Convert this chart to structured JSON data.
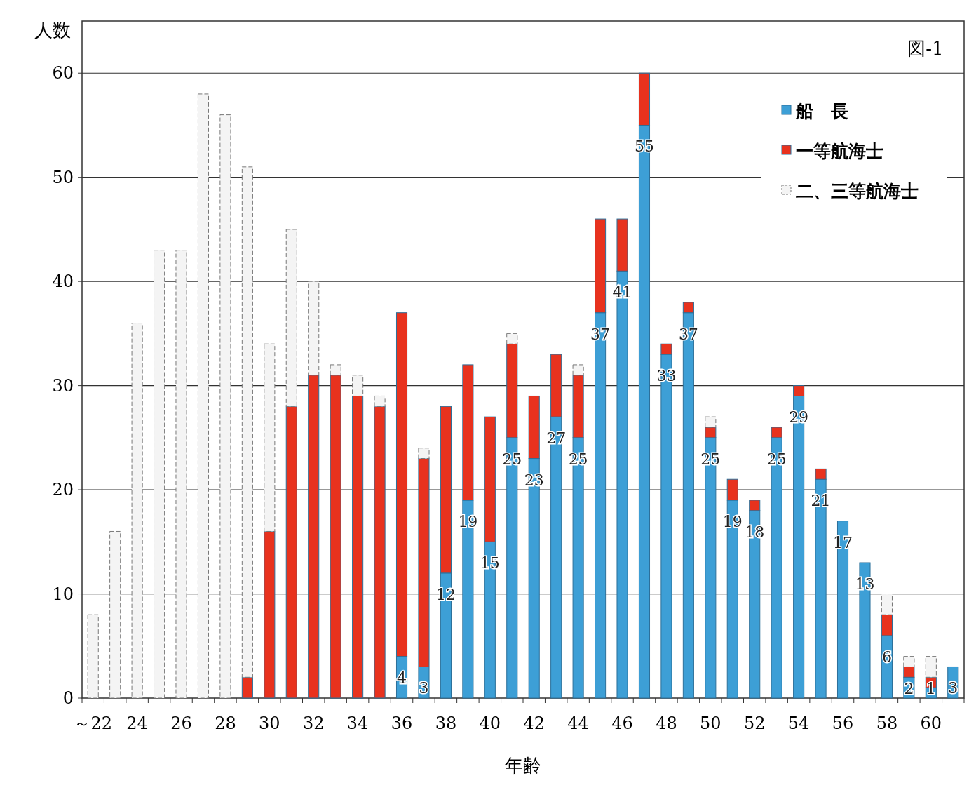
{
  "chart_data": {
    "type": "bar",
    "stacked": true,
    "xlabel": "年齢",
    "ylabel": "人数",
    "annotations": [
      "図-1"
    ],
    "categories": [
      "～22",
      null,
      "24",
      null,
      "26",
      null,
      "28",
      null,
      "30",
      null,
      "32",
      null,
      "34",
      null,
      "36",
      null,
      "38",
      null,
      "40",
      null,
      "42",
      null,
      "44",
      null,
      "46",
      null,
      "48",
      null,
      "50",
      null,
      "52",
      null,
      "54",
      null,
      "56",
      null,
      "58",
      null,
      "60",
      null
    ],
    "series": [
      {
        "name": "船　長",
        "color": "#3d9fd6",
        "values": [
          null,
          null,
          null,
          null,
          null,
          null,
          null,
          null,
          null,
          null,
          null,
          null,
          null,
          null,
          4,
          3,
          12,
          19,
          15,
          25,
          23,
          27,
          25,
          37,
          41,
          55,
          33,
          37,
          25,
          19,
          18,
          25,
          29,
          21,
          17,
          13,
          6,
          2,
          1,
          3
        ],
        "value_labels": [
          null,
          null,
          null,
          null,
          null,
          null,
          null,
          null,
          null,
          null,
          null,
          null,
          null,
          null,
          "4",
          "3",
          "12",
          "19",
          "15",
          "25",
          "23",
          "27",
          "25",
          "37",
          "41",
          "55",
          "33",
          "37",
          "25",
          "19",
          "18",
          "25",
          "29",
          "21",
          "17",
          "13",
          "6",
          "2",
          "1",
          "3"
        ]
      },
      {
        "name": "一等航海士",
        "color": "#e8321e",
        "values": [
          null,
          null,
          null,
          null,
          null,
          null,
          null,
          2,
          16,
          28,
          31,
          31,
          29,
          28,
          33,
          20,
          16,
          13,
          12,
          9,
          6,
          6,
          6,
          9,
          5,
          5,
          1,
          1,
          1,
          2,
          1,
          1,
          1,
          1,
          null,
          null,
          2,
          1,
          1,
          null
        ]
      },
      {
        "name": "二、三等航海士",
        "color": "#f4f4f4",
        "values": [
          8,
          16,
          36,
          43,
          43,
          58,
          56,
          49,
          18,
          17,
          9,
          1,
          2,
          1,
          null,
          1,
          null,
          null,
          null,
          1,
          null,
          null,
          1,
          null,
          null,
          null,
          null,
          null,
          1,
          null,
          null,
          null,
          null,
          null,
          null,
          null,
          2,
          1,
          2,
          null
        ]
      }
    ],
    "ylim": [
      0,
      65
    ],
    "yticks": [
      0,
      10,
      20,
      30,
      40,
      50,
      60
    ],
    "grid": "y",
    "legend": "top right"
  }
}
